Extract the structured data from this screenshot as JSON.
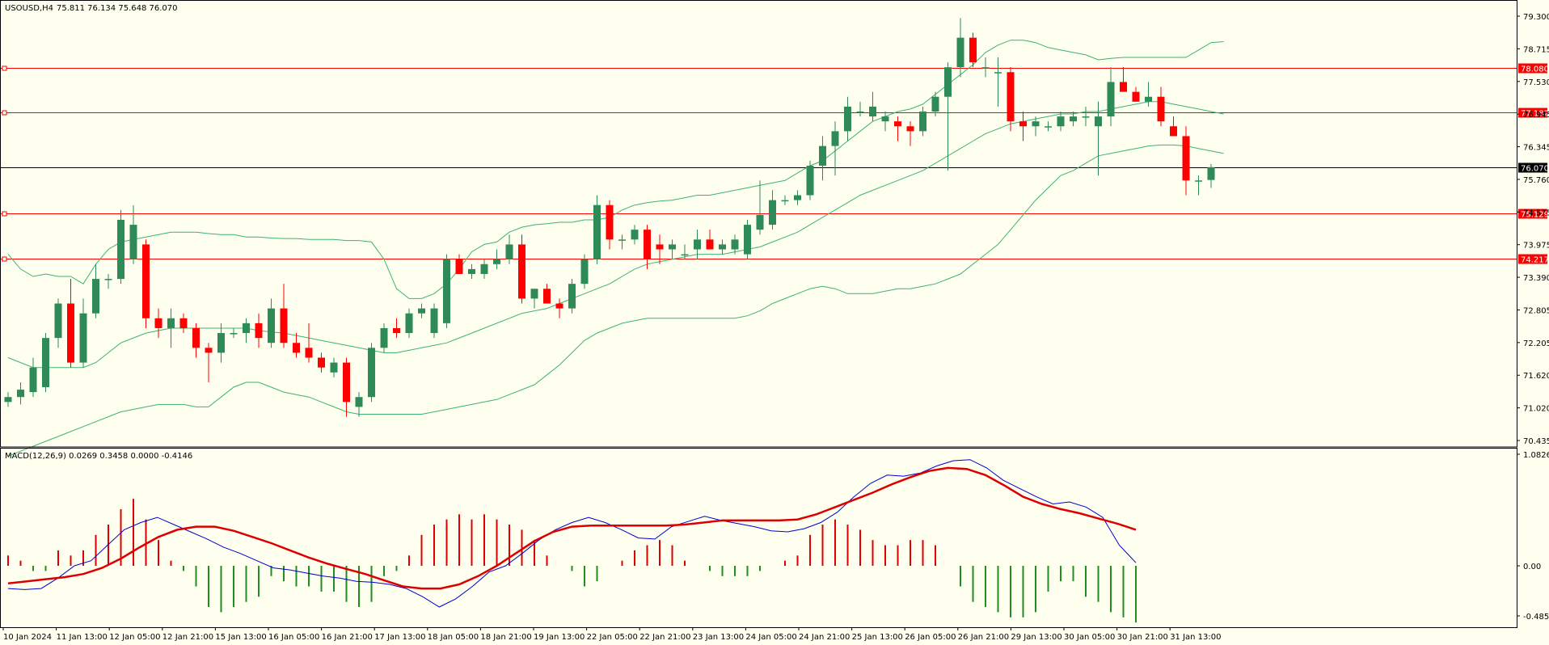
{
  "main_header": {
    "symbol": "USOUSD,H4",
    "ohlc": "75.811 76.134 75.648 76.070"
  },
  "macd_header": {
    "label": "MACD(12,26,9) 0.0269 0.3458 0.0000 -0.4146"
  },
  "colors": {
    "background": "#fffff0",
    "bull_candle": "#2e8b57",
    "bear_candle": "#ff0000",
    "bands": "#3cb371",
    "level_line": "#ff0000",
    "current_line": "#000000",
    "macd_line": "#0000cd",
    "signal_line": "#dd0000",
    "hist_up": "#dd0000",
    "hist_down": "#228b22"
  },
  "price_axis_labels": [
    "79.300",
    "78.715",
    "77.530",
    "76.945",
    "76.345",
    "75.760",
    "74.575",
    "73.975",
    "73.390",
    "72.805",
    "72.205",
    "71.620",
    "71.020",
    "70.435"
  ],
  "level_tags": [
    {
      "text": "78.080",
      "value": 78.08
    },
    {
      "text": "77.182",
      "value": 77.182
    },
    {
      "text": "75.129",
      "value": 75.129
    },
    {
      "text": "74.217",
      "value": 74.217
    }
  ],
  "current_tag": {
    "text": "76.070",
    "value": 76.07
  },
  "macd_axis_labels": [
    {
      "text": "1.0826",
      "value": 1.0826
    },
    {
      "text": "0.00",
      "value": 0.0
    },
    {
      "text": "-0.4859",
      "value": -0.4859
    }
  ],
  "time_labels": [
    "10 Jan 2024",
    "11 Jan 13:00",
    "12 Jan 05:00",
    "12 Jan 21:00",
    "15 Jan 13:00",
    "16 Jan 05:00",
    "16 Jan 21:00",
    "17 Jan 13:00",
    "18 Jan 05:00",
    "18 Jan 21:00",
    "19 Jan 13:00",
    "22 Jan 05:00",
    "22 Jan 21:00",
    "23 Jan 13:00",
    "24 Jan 05:00",
    "24 Jan 21:00",
    "25 Jan 13:00",
    "26 Jan 05:00",
    "26 Jan 21:00",
    "29 Jan 13:00",
    "30 Jan 05:00",
    "30 Jan 21:00",
    "31 Jan 13:00"
  ],
  "chart_data": {
    "type": "candlestick",
    "price_range": [
      70.435,
      79.4
    ],
    "macd_range": [
      -0.4859,
      1.0826
    ],
    "candles": [
      {
        "o": 71.3,
        "h": 71.5,
        "l": 71.2,
        "c": 71.4
      },
      {
        "o": 71.4,
        "h": 71.7,
        "l": 71.25,
        "c": 71.55
      },
      {
        "o": 71.5,
        "h": 72.2,
        "l": 71.4,
        "c": 72.0
      },
      {
        "o": 71.6,
        "h": 72.7,
        "l": 71.5,
        "c": 72.6
      },
      {
        "o": 72.6,
        "h": 73.4,
        "l": 72.4,
        "c": 73.3
      },
      {
        "o": 73.3,
        "h": 73.8,
        "l": 72.0,
        "c": 72.1
      },
      {
        "o": 72.1,
        "h": 73.4,
        "l": 72.0,
        "c": 73.1
      },
      {
        "o": 73.1,
        "h": 74.1,
        "l": 73.0,
        "c": 73.8
      },
      {
        "o": 73.8,
        "h": 73.9,
        "l": 73.6,
        "c": 73.8
      },
      {
        "o": 73.8,
        "h": 75.2,
        "l": 73.7,
        "c": 75.0
      },
      {
        "o": 74.2,
        "h": 75.3,
        "l": 74.1,
        "c": 74.9
      },
      {
        "o": 74.5,
        "h": 74.6,
        "l": 72.8,
        "c": 73.0
      },
      {
        "o": 73.0,
        "h": 73.2,
        "l": 72.6,
        "c": 72.8
      },
      {
        "o": 72.8,
        "h": 73.2,
        "l": 72.4,
        "c": 73.0
      },
      {
        "o": 73.0,
        "h": 73.1,
        "l": 72.7,
        "c": 72.8
      },
      {
        "o": 72.8,
        "h": 72.9,
        "l": 72.2,
        "c": 72.4
      },
      {
        "o": 72.4,
        "h": 72.5,
        "l": 71.7,
        "c": 72.3
      },
      {
        "o": 72.3,
        "h": 72.9,
        "l": 72.1,
        "c": 72.7
      },
      {
        "o": 72.7,
        "h": 72.8,
        "l": 72.6,
        "c": 72.7
      },
      {
        "o": 72.7,
        "h": 73.0,
        "l": 72.5,
        "c": 72.9
      },
      {
        "o": 72.9,
        "h": 73.1,
        "l": 72.4,
        "c": 72.6
      },
      {
        "o": 72.5,
        "h": 73.4,
        "l": 72.4,
        "c": 73.2
      },
      {
        "o": 73.2,
        "h": 73.7,
        "l": 72.4,
        "c": 72.5
      },
      {
        "o": 72.5,
        "h": 72.7,
        "l": 72.2,
        "c": 72.3
      },
      {
        "o": 72.4,
        "h": 72.9,
        "l": 72.1,
        "c": 72.2
      },
      {
        "o": 72.2,
        "h": 72.3,
        "l": 71.9,
        "c": 72.0
      },
      {
        "o": 71.9,
        "h": 72.2,
        "l": 71.8,
        "c": 72.1
      },
      {
        "o": 72.1,
        "h": 72.2,
        "l": 71.0,
        "c": 71.3
      },
      {
        "o": 71.2,
        "h": 71.5,
        "l": 71.0,
        "c": 71.4
      },
      {
        "o": 71.4,
        "h": 72.5,
        "l": 71.3,
        "c": 72.4
      },
      {
        "o": 72.4,
        "h": 72.9,
        "l": 72.3,
        "c": 72.8
      },
      {
        "o": 72.8,
        "h": 73.0,
        "l": 72.6,
        "c": 72.7
      },
      {
        "o": 72.7,
        "h": 73.2,
        "l": 72.6,
        "c": 73.1
      },
      {
        "o": 73.1,
        "h": 73.3,
        "l": 73.0,
        "c": 73.2
      },
      {
        "o": 72.7,
        "h": 73.3,
        "l": 72.6,
        "c": 73.2
      },
      {
        "o": 72.9,
        "h": 74.3,
        "l": 72.8,
        "c": 74.2
      },
      {
        "o": 74.2,
        "h": 74.3,
        "l": 73.9,
        "c": 73.9
      },
      {
        "o": 73.9,
        "h": 74.1,
        "l": 73.8,
        "c": 74.0
      },
      {
        "o": 73.9,
        "h": 74.2,
        "l": 73.8,
        "c": 74.1
      },
      {
        "o": 74.1,
        "h": 74.4,
        "l": 74.0,
        "c": 74.2
      },
      {
        "o": 74.2,
        "h": 74.7,
        "l": 74.1,
        "c": 74.5
      },
      {
        "o": 74.5,
        "h": 74.7,
        "l": 73.3,
        "c": 73.4
      },
      {
        "o": 73.4,
        "h": 73.6,
        "l": 73.2,
        "c": 73.6
      },
      {
        "o": 73.6,
        "h": 73.7,
        "l": 73.3,
        "c": 73.3
      },
      {
        "o": 73.3,
        "h": 73.4,
        "l": 73.0,
        "c": 73.2
      },
      {
        "o": 73.2,
        "h": 73.8,
        "l": 73.1,
        "c": 73.7
      },
      {
        "o": 73.7,
        "h": 74.3,
        "l": 73.6,
        "c": 74.2
      },
      {
        "o": 74.2,
        "h": 75.5,
        "l": 74.1,
        "c": 75.3
      },
      {
        "o": 75.3,
        "h": 75.4,
        "l": 74.4,
        "c": 74.6
      },
      {
        "o": 74.6,
        "h": 74.7,
        "l": 74.4,
        "c": 74.6
      },
      {
        "o": 74.6,
        "h": 74.9,
        "l": 74.5,
        "c": 74.8
      },
      {
        "o": 74.8,
        "h": 74.9,
        "l": 74.0,
        "c": 74.2
      },
      {
        "o": 74.5,
        "h": 74.7,
        "l": 74.1,
        "c": 74.4
      },
      {
        "o": 74.4,
        "h": 74.6,
        "l": 74.2,
        "c": 74.5
      },
      {
        "o": 74.3,
        "h": 74.5,
        "l": 74.2,
        "c": 74.3
      },
      {
        "o": 74.4,
        "h": 74.8,
        "l": 74.2,
        "c": 74.6
      },
      {
        "o": 74.6,
        "h": 74.8,
        "l": 74.4,
        "c": 74.4
      },
      {
        "o": 74.4,
        "h": 74.6,
        "l": 74.3,
        "c": 74.5
      },
      {
        "o": 74.4,
        "h": 74.7,
        "l": 74.3,
        "c": 74.6
      },
      {
        "o": 74.3,
        "h": 75.0,
        "l": 74.2,
        "c": 74.9
      },
      {
        "o": 74.8,
        "h": 75.8,
        "l": 74.7,
        "c": 75.1
      },
      {
        "o": 74.9,
        "h": 75.6,
        "l": 74.8,
        "c": 75.4
      },
      {
        "o": 75.4,
        "h": 75.5,
        "l": 75.3,
        "c": 75.4
      },
      {
        "o": 75.4,
        "h": 75.6,
        "l": 75.3,
        "c": 75.5
      },
      {
        "o": 75.5,
        "h": 76.2,
        "l": 75.4,
        "c": 76.1
      },
      {
        "o": 76.1,
        "h": 76.7,
        "l": 75.8,
        "c": 76.5
      },
      {
        "o": 76.5,
        "h": 77.0,
        "l": 75.9,
        "c": 76.8
      },
      {
        "o": 76.8,
        "h": 77.5,
        "l": 76.6,
        "c": 77.3
      },
      {
        "o": 77.2,
        "h": 77.4,
        "l": 77.1,
        "c": 77.2
      },
      {
        "o": 77.1,
        "h": 77.6,
        "l": 77.0,
        "c": 77.3
      },
      {
        "o": 77.0,
        "h": 77.2,
        "l": 76.8,
        "c": 77.1
      },
      {
        "o": 77.0,
        "h": 77.1,
        "l": 76.6,
        "c": 76.9
      },
      {
        "o": 76.9,
        "h": 77.0,
        "l": 76.5,
        "c": 76.8
      },
      {
        "o": 76.8,
        "h": 77.3,
        "l": 76.7,
        "c": 77.2
      },
      {
        "o": 77.2,
        "h": 77.6,
        "l": 77.1,
        "c": 77.5
      },
      {
        "o": 77.5,
        "h": 78.2,
        "l": 76.0,
        "c": 78.1
      },
      {
        "o": 78.1,
        "h": 79.1,
        "l": 77.9,
        "c": 78.7
      },
      {
        "o": 78.7,
        "h": 78.8,
        "l": 78.1,
        "c": 78.2
      },
      {
        "o": 78.1,
        "h": 78.3,
        "l": 77.9,
        "c": 78.1
      },
      {
        "o": 78.0,
        "h": 78.3,
        "l": 77.3,
        "c": 78.0
      },
      {
        "o": 78.0,
        "h": 78.1,
        "l": 76.8,
        "c": 77.0
      },
      {
        "o": 77.0,
        "h": 77.2,
        "l": 76.6,
        "c": 76.9
      },
      {
        "o": 76.9,
        "h": 77.1,
        "l": 76.7,
        "c": 77.0
      },
      {
        "o": 76.9,
        "h": 77.0,
        "l": 76.8,
        "c": 76.9
      },
      {
        "o": 76.9,
        "h": 77.2,
        "l": 76.8,
        "c": 77.1
      },
      {
        "o": 77.0,
        "h": 77.2,
        "l": 76.9,
        "c": 77.1
      },
      {
        "o": 77.1,
        "h": 77.3,
        "l": 76.9,
        "c": 77.1
      },
      {
        "o": 76.9,
        "h": 77.4,
        "l": 75.9,
        "c": 77.1
      },
      {
        "o": 77.1,
        "h": 78.1,
        "l": 76.9,
        "c": 77.8
      },
      {
        "o": 77.8,
        "h": 78.1,
        "l": 77.6,
        "c": 77.6
      },
      {
        "o": 77.6,
        "h": 77.7,
        "l": 77.4,
        "c": 77.4
      },
      {
        "o": 77.4,
        "h": 77.8,
        "l": 77.3,
        "c": 77.5
      },
      {
        "o": 77.5,
        "h": 77.7,
        "l": 76.9,
        "c": 77.0
      },
      {
        "o": 76.9,
        "h": 77.1,
        "l": 76.7,
        "c": 76.7
      },
      {
        "o": 76.7,
        "h": 76.9,
        "l": 75.5,
        "c": 75.8
      },
      {
        "o": 75.8,
        "h": 75.9,
        "l": 75.5,
        "c": 75.8
      },
      {
        "o": 75.81,
        "h": 76.134,
        "l": 75.648,
        "c": 76.07
      }
    ],
    "bb_upper": [
      74.3,
      74.0,
      73.85,
      73.9,
      73.85,
      73.85,
      73.7,
      74.1,
      74.4,
      74.55,
      74.6,
      74.65,
      74.7,
      74.75,
      74.75,
      74.75,
      74.72,
      74.7,
      74.7,
      74.65,
      74.65,
      74.63,
      74.62,
      74.62,
      74.6,
      74.6,
      74.6,
      74.58,
      74.58,
      74.55,
      74.2,
      73.6,
      73.4,
      73.4,
      73.5,
      73.7,
      74.0,
      74.35,
      74.5,
      74.55,
      74.75,
      74.85,
      74.9,
      74.92,
      74.95,
      74.95,
      75.0,
      75.0,
      75.05,
      75.2,
      75.3,
      75.35,
      75.38,
      75.4,
      75.45,
      75.5,
      75.5,
      75.55,
      75.6,
      75.65,
      75.7,
      75.75,
      75.8,
      75.95,
      76.1,
      76.2,
      76.4,
      76.6,
      76.8,
      77.0,
      77.1,
      77.2,
      77.25,
      77.35,
      77.55,
      77.75,
      77.95,
      78.15,
      78.4,
      78.55,
      78.65,
      78.65,
      78.6,
      78.5,
      78.45,
      78.4,
      78.35,
      78.25,
      78.28,
      78.3,
      78.3,
      78.3,
      78.3,
      78.3,
      78.3,
      78.45,
      78.6,
      78.62
    ],
    "bb_middle": [
      72.2,
      72.1,
      72.0,
      72.0,
      72.0,
      72.0,
      72.0,
      72.1,
      72.3,
      72.5,
      72.6,
      72.7,
      72.75,
      72.8,
      72.8,
      72.8,
      72.8,
      72.8,
      72.8,
      72.8,
      72.75,
      72.72,
      72.7,
      72.65,
      72.6,
      72.55,
      72.5,
      72.45,
      72.4,
      72.35,
      72.3,
      72.3,
      72.35,
      72.4,
      72.45,
      72.5,
      72.6,
      72.7,
      72.8,
      72.9,
      73.0,
      73.1,
      73.15,
      73.2,
      73.3,
      73.4,
      73.5,
      73.6,
      73.7,
      73.85,
      74.0,
      74.1,
      74.15,
      74.2,
      74.25,
      74.3,
      74.3,
      74.3,
      74.35,
      74.4,
      74.45,
      74.55,
      74.65,
      74.75,
      74.9,
      75.05,
      75.2,
      75.35,
      75.5,
      75.6,
      75.7,
      75.8,
      75.9,
      76.0,
      76.15,
      76.3,
      76.45,
      76.6,
      76.75,
      76.85,
      76.95,
      77.0,
      77.05,
      77.1,
      77.15,
      77.15,
      77.2,
      77.2,
      77.25,
      77.3,
      77.35,
      77.4,
      77.4,
      77.35,
      77.3,
      77.25,
      77.2,
      77.15
    ],
    "bb_lower": [
      70.2,
      70.3,
      70.4,
      70.5,
      70.6,
      70.7,
      70.8,
      70.9,
      71.0,
      71.1,
      71.15,
      71.2,
      71.25,
      71.25,
      71.25,
      71.2,
      71.2,
      71.4,
      71.6,
      71.7,
      71.7,
      71.6,
      71.5,
      71.45,
      71.4,
      71.3,
      71.2,
      71.1,
      71.05,
      71.05,
      71.05,
      71.05,
      71.05,
      71.05,
      71.1,
      71.15,
      71.2,
      71.25,
      71.3,
      71.35,
      71.45,
      71.55,
      71.65,
      71.85,
      72.05,
      72.3,
      72.55,
      72.7,
      72.8,
      72.9,
      72.95,
      73.0,
      73.0,
      73.0,
      73.0,
      73.0,
      73.0,
      73.0,
      73.0,
      73.05,
      73.15,
      73.3,
      73.4,
      73.5,
      73.6,
      73.65,
      73.6,
      73.5,
      73.5,
      73.5,
      73.55,
      73.6,
      73.6,
      73.65,
      73.7,
      73.8,
      73.9,
      74.1,
      74.3,
      74.5,
      74.8,
      75.1,
      75.4,
      75.65,
      75.9,
      76.0,
      76.15,
      76.3,
      76.35,
      76.4,
      76.45,
      76.5,
      76.52,
      76.52,
      76.5,
      76.45,
      76.4,
      76.35
    ],
    "macd_hist": [
      0.1,
      0.05,
      -0.05,
      -0.05,
      0.15,
      0.1,
      0.15,
      0.3,
      0.4,
      0.55,
      0.65,
      0.45,
      0.25,
      0.05,
      -0.05,
      -0.2,
      -0.4,
      -0.45,
      -0.4,
      -0.35,
      -0.3,
      -0.1,
      -0.15,
      -0.2,
      -0.2,
      -0.25,
      -0.25,
      -0.35,
      -0.4,
      -0.35,
      -0.1,
      -0.05,
      0.1,
      0.3,
      0.4,
      0.45,
      0.5,
      0.45,
      0.5,
      0.45,
      0.4,
      0.35,
      0.25,
      0.1,
      0.0,
      -0.05,
      -0.2,
      -0.15,
      0.0,
      0.05,
      0.15,
      0.2,
      0.25,
      0.2,
      0.05,
      0.0,
      -0.05,
      -0.1,
      -0.1,
      -0.1,
      -0.05,
      0.0,
      0.05,
      0.1,
      0.3,
      0.4,
      0.45,
      0.4,
      0.35,
      0.25,
      0.2,
      0.2,
      0.25,
      0.25,
      0.2,
      0.0,
      -0.2,
      -0.35,
      -0.4,
      -0.45,
      -0.5,
      -0.5,
      -0.45,
      -0.25,
      -0.15,
      -0.15,
      -0.3,
      -0.35,
      -0.45,
      -0.5,
      -0.55
    ],
    "macd_line": [
      -0.22,
      -0.23,
      -0.22,
      -0.12,
      0.0,
      0.05,
      0.2,
      0.35,
      0.42,
      0.47,
      0.4,
      0.33,
      0.26,
      0.18,
      0.12,
      0.05,
      -0.02,
      -0.04,
      -0.07,
      -0.1,
      -0.12,
      -0.15,
      -0.16,
      -0.18,
      -0.22,
      -0.3,
      -0.4,
      -0.32,
      -0.2,
      -0.06,
      0.0,
      0.12,
      0.25,
      0.35,
      0.42,
      0.47,
      0.42,
      0.35,
      0.27,
      0.26,
      0.38,
      0.43,
      0.48,
      0.44,
      0.41,
      0.38,
      0.34,
      0.33,
      0.36,
      0.42,
      0.52,
      0.67,
      0.8,
      0.88,
      0.87,
      0.9,
      0.97,
      1.02,
      1.03,
      0.95,
      0.83,
      0.75,
      0.67,
      0.6,
      0.62,
      0.57,
      0.47,
      0.2,
      0.03
    ],
    "signal_line": [
      -0.17,
      -0.15,
      -0.13,
      -0.11,
      -0.08,
      -0.02,
      0.07,
      0.18,
      0.28,
      0.35,
      0.38,
      0.38,
      0.34,
      0.28,
      0.22,
      0.15,
      0.08,
      0.02,
      -0.03,
      -0.08,
      -0.14,
      -0.2,
      -0.22,
      -0.22,
      -0.18,
      -0.1,
      0.0,
      0.12,
      0.24,
      0.33,
      0.38,
      0.39,
      0.39,
      0.39,
      0.39,
      0.39,
      0.4,
      0.42,
      0.44,
      0.44,
      0.44,
      0.44,
      0.45,
      0.5,
      0.57,
      0.64,
      0.71,
      0.79,
      0.86,
      0.92,
      0.95,
      0.94,
      0.88,
      0.78,
      0.67,
      0.6,
      0.55,
      0.51,
      0.46,
      0.41,
      0.35
    ]
  }
}
